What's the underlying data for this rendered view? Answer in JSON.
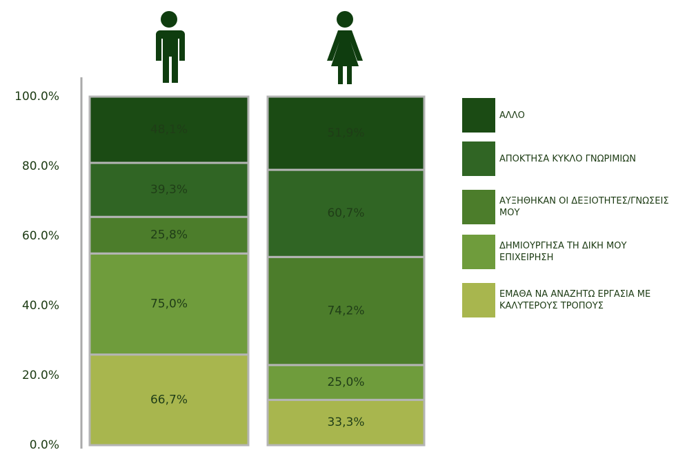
{
  "chart_data": {
    "type": "stacked_bar",
    "categories": [
      null,
      null
    ],
    "ylim": [
      0,
      100
    ],
    "yticks": [
      {
        "value": 0,
        "label": "0.0%"
      },
      {
        "value": 20,
        "label": "20.0%"
      },
      {
        "value": 40,
        "label": "40.0%"
      },
      {
        "value": 60,
        "label": "60.0%"
      },
      {
        "value": 80,
        "label": "80.0%"
      },
      {
        "value": 100,
        "label": "100.0%"
      }
    ],
    "series": [
      {
        "name": "ΕΜΑΘΑ ΝΑ ΑΝΑΖΗΤΩ ΕΡΓΑΣΙΑ ΜΕ ΚΑΛΥΤΕΡΟΥΣ ΤΡΟΠΟΥΣ",
        "color": "#a8b64e",
        "values": [
          26,
          13
        ],
        "labels": [
          "66,7%",
          "33,3%"
        ]
      },
      {
        "name": "ΔΗΜΙΟΥΡΓΗΣΑ ΤΗ ΔΙΚΗ ΜΟΥ ΕΠΙΧΕΙΡΗΣΗ",
        "color": "#6f9c3c",
        "values": [
          29,
          10
        ],
        "labels": [
          "75,0%",
          "25,0%"
        ]
      },
      {
        "name": "ΑΥΞΗΘΗΚΑΝ ΟΙ ΔΕΞΙΟΤΗΤΕΣ/ΓΝΩΣΕΙΣ ΜΟΥ",
        "color": "#4c7d2b",
        "values": [
          10.5,
          31
        ],
        "labels": [
          "25,8%",
          "74,2%"
        ]
      },
      {
        "name": "ΑΠΟΚΤΗΣΑ ΚΥΚΛΟ ΓΝΩΡΙΜΙΩΝ",
        "color": "#306524",
        "values": [
          15.5,
          25
        ],
        "labels": [
          "39,3%",
          "60,7%"
        ]
      },
      {
        "name": "ΑΛΛΟ",
        "color": "#1b4b14",
        "values": [
          19,
          21
        ],
        "labels": [
          "48,1%",
          "51,9%"
        ]
      }
    ],
    "legend": "right"
  }
}
